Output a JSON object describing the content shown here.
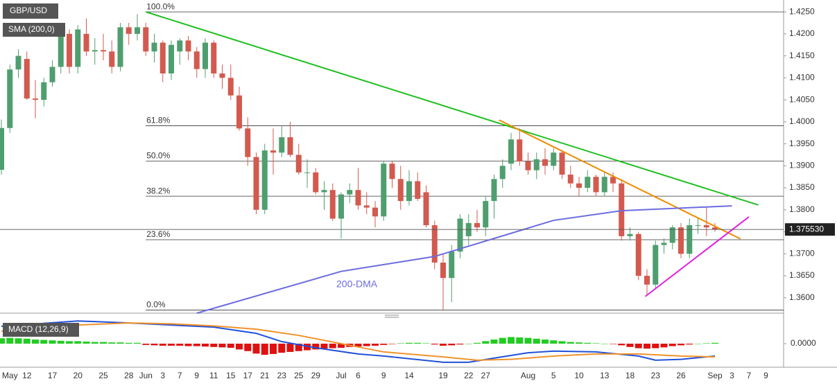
{
  "chart_data": {
    "type": "candlestick",
    "title": "GBP/USD",
    "indicator_label": "SMA (200,0)",
    "up_color": "#4f9e6f",
    "down_color": "#d25a4e",
    "ylim": [
      1.3565,
      1.4277
    ],
    "yticks": [
      {
        "value": 1.425,
        "label": "1.4250"
      },
      {
        "value": 1.42,
        "label": "1.4200"
      },
      {
        "value": 1.415,
        "label": "1.4150"
      },
      {
        "value": 1.41,
        "label": "1.4100"
      },
      {
        "value": 1.405,
        "label": "1.4050"
      },
      {
        "value": 1.4,
        "label": "1.4000"
      },
      {
        "value": 1.395,
        "label": "1.3950"
      },
      {
        "value": 1.39,
        "label": "1.3900"
      },
      {
        "value": 1.385,
        "label": "1.3850"
      },
      {
        "value": 1.38,
        "label": "1.3800"
      },
      {
        "value": 1.375,
        "label": "1.3750"
      },
      {
        "value": 1.37,
        "label": "1.3700"
      },
      {
        "value": 1.365,
        "label": "1.3650"
      },
      {
        "value": 1.36,
        "label": "1.3600"
      }
    ],
    "categories": [
      null,
      "May",
      null,
      "12",
      null,
      null,
      "17",
      null,
      null,
      "20",
      null,
      null,
      "25",
      null,
      null,
      "28",
      null,
      "Jun",
      null,
      "3",
      null,
      "7",
      null,
      "9",
      null,
      "11",
      null,
      "15",
      null,
      "17",
      null,
      "21",
      null,
      "23",
      null,
      "25",
      null,
      "29",
      null,
      null,
      "Jul",
      null,
      "6",
      null,
      null,
      "9",
      null,
      null,
      "14",
      null,
      null,
      null,
      "19",
      null,
      null,
      "22",
      null,
      "27",
      null,
      null,
      null,
      null,
      "Aug",
      null,
      null,
      "5",
      null,
      null,
      "10",
      null,
      null,
      "13",
      null,
      null,
      "18",
      null,
      null,
      "23",
      null,
      null,
      "26",
      null,
      null,
      null,
      "Sep",
      null,
      "3",
      null,
      "7",
      null,
      "9"
    ],
    "ohlc": [
      [
        1.3891,
        1.4005,
        1.388,
        1.3986
      ],
      [
        1.3986,
        1.413,
        1.3975,
        1.4119
      ],
      [
        1.4119,
        1.4165,
        1.41,
        1.415
      ],
      [
        1.4143,
        1.416,
        1.405,
        1.4053
      ],
      [
        1.4053,
        1.4095,
        1.4008,
        1.405
      ],
      [
        1.405,
        1.41,
        1.4035,
        1.409
      ],
      [
        1.409,
        1.414,
        1.408,
        1.4125
      ],
      [
        1.4125,
        1.4215,
        1.411,
        1.42
      ],
      [
        1.42,
        1.421,
        1.411,
        1.4125
      ],
      [
        1.4125,
        1.422,
        1.411,
        1.421
      ],
      [
        1.42,
        1.4235,
        1.415,
        1.416
      ],
      [
        1.416,
        1.419,
        1.413,
        1.4163
      ],
      [
        1.4163,
        1.42,
        1.414,
        1.416
      ],
      [
        1.416,
        1.4185,
        1.411,
        1.4125
      ],
      [
        1.4125,
        1.4225,
        1.4115,
        1.4215
      ],
      [
        1.4215,
        1.4225,
        1.4175,
        1.42
      ],
      [
        1.42,
        1.4245,
        1.4185,
        1.4215
      ],
      [
        1.4215,
        1.4225,
        1.415,
        1.416
      ],
      [
        1.416,
        1.42,
        1.4135,
        1.418
      ],
      [
        1.418,
        1.4185,
        1.409,
        1.411
      ],
      [
        1.411,
        1.4185,
        1.4095,
        1.4175
      ],
      [
        1.416,
        1.419,
        1.413,
        1.4185
      ],
      [
        1.4185,
        1.4195,
        1.414,
        1.416
      ],
      [
        1.416,
        1.417,
        1.41,
        1.412
      ],
      [
        1.412,
        1.419,
        1.41,
        1.418
      ],
      [
        1.418,
        1.4185,
        1.41,
        1.411
      ],
      [
        1.411,
        1.413,
        1.4075,
        1.41
      ],
      [
        1.41,
        1.413,
        1.405,
        1.406
      ],
      [
        1.406,
        1.408,
        1.398,
        1.3985
      ],
      [
        1.3985,
        1.401,
        1.39,
        1.392
      ],
      [
        1.392,
        1.393,
        1.379,
        1.38
      ],
      [
        1.38,
        1.395,
        1.379,
        1.3935
      ],
      [
        1.3935,
        1.3985,
        1.388,
        1.393
      ],
      [
        1.393,
        1.399,
        1.392,
        1.3965
      ],
      [
        1.3965,
        1.4,
        1.392,
        1.3925
      ],
      [
        1.3925,
        1.395,
        1.388,
        1.3885
      ],
      [
        1.3885,
        1.3915,
        1.385,
        1.3885
      ],
      [
        1.3885,
        1.3895,
        1.3835,
        1.384
      ],
      [
        1.384,
        1.3865,
        1.38,
        1.3845
      ],
      [
        1.3845,
        1.386,
        1.3775,
        1.378
      ],
      [
        1.378,
        1.384,
        1.3735,
        1.3835
      ],
      [
        1.3835,
        1.386,
        1.3815,
        1.3845
      ],
      [
        1.3845,
        1.3895,
        1.38,
        1.381
      ],
      [
        1.381,
        1.384,
        1.379,
        1.3805
      ],
      [
        1.3805,
        1.382,
        1.376,
        1.3785
      ],
      [
        1.3785,
        1.391,
        1.3775,
        1.3905
      ],
      [
        1.3905,
        1.391,
        1.385,
        1.387
      ],
      [
        1.387,
        1.39,
        1.38,
        1.382
      ],
      [
        1.382,
        1.389,
        1.381,
        1.3865
      ],
      [
        1.3865,
        1.3885,
        1.382,
        1.3825
      ],
      [
        1.384,
        1.3855,
        1.376,
        1.3765
      ],
      [
        1.3765,
        1.3775,
        1.3665,
        1.368
      ],
      [
        1.368,
        1.37,
        1.3572,
        1.3645
      ],
      [
        1.3645,
        1.372,
        1.359,
        1.3705
      ],
      [
        1.3705,
        1.379,
        1.369,
        1.378
      ],
      [
        1.374,
        1.379,
        1.372,
        1.377
      ],
      [
        1.377,
        1.38,
        1.375,
        1.376
      ],
      [
        1.376,
        1.383,
        1.374,
        1.382
      ],
      [
        1.382,
        1.388,
        1.378,
        1.387
      ],
      [
        1.387,
        1.3915,
        1.385,
        1.39
      ],
      [
        1.3905,
        1.3975,
        1.389,
        1.396
      ],
      [
        1.396,
        1.3985,
        1.39,
        1.391
      ],
      [
        1.391,
        1.393,
        1.388,
        1.389
      ],
      [
        1.389,
        1.393,
        1.387,
        1.3915
      ],
      [
        1.3915,
        1.394,
        1.388,
        1.39
      ],
      [
        1.39,
        1.394,
        1.389,
        1.393
      ],
      [
        1.393,
        1.3935,
        1.387,
        1.388
      ],
      [
        1.388,
        1.39,
        1.385,
        1.386
      ],
      [
        1.386,
        1.3875,
        1.383,
        1.385
      ],
      [
        1.385,
        1.389,
        1.384,
        1.3875
      ],
      [
        1.3875,
        1.388,
        1.383,
        1.384
      ],
      [
        1.384,
        1.3885,
        1.383,
        1.3875
      ],
      [
        1.3875,
        1.3885,
        1.384,
        1.386
      ],
      [
        1.386,
        1.387,
        1.373,
        1.374
      ],
      [
        1.374,
        1.376,
        1.373,
        1.3745
      ],
      [
        1.3745,
        1.375,
        1.364,
        1.365
      ],
      [
        1.365,
        1.3665,
        1.3605,
        1.363
      ],
      [
        1.363,
        1.373,
        1.362,
        1.372
      ],
      [
        1.372,
        1.3735,
        1.37,
        1.3725
      ],
      [
        1.3725,
        1.3765,
        1.371,
        1.376
      ],
      [
        1.376,
        1.377,
        1.369,
        1.37
      ],
      [
        1.37,
        1.378,
        1.369,
        1.3765
      ],
      [
        1.3765,
        1.378,
        1.3745,
        1.3765
      ],
      [
        1.3765,
        1.3805,
        1.374,
        1.376
      ],
      [
        1.376,
        1.377,
        1.375,
        1.3755
      ],
      null,
      null,
      null,
      null,
      null,
      null
    ],
    "fib_levels": [
      {
        "label": "100.0%",
        "value": 1.425
      },
      {
        "label": "61.8%",
        "value": 1.3991
      },
      {
        "label": "50.0%",
        "value": 1.3911
      },
      {
        "label": "38.2%",
        "value": 1.3831
      },
      {
        "label": "23.6%",
        "value": 1.3732
      },
      {
        "label": "0.0%",
        "value": 1.3572
      }
    ],
    "fib_start": 17,
    "lines": [
      {
        "color": "#1fbf1f",
        "x": [
          17,
          89.1
        ],
        "values": [
          1.425,
          1.3811
        ]
      },
      {
        "color": "#f08a00",
        "x": [
          58.6,
          87
        ],
        "values": [
          1.4004,
          1.3734
        ]
      },
      {
        "color": "#e020e0",
        "x": [
          75.8,
          88
        ],
        "values": [
          1.3603,
          1.3784
        ]
      },
      {
        "name": "200-DMA",
        "color": "#6b6be0",
        "x": [
          23,
          40,
          51,
          57,
          65,
          73,
          86
        ],
        "values": [
          1.3565,
          1.366,
          1.3694,
          1.3729,
          1.3776,
          1.3798,
          1.3809
        ]
      }
    ],
    "last_price": {
      "value": 1.37553,
      "label": "1.375530"
    },
    "macd": {
      "title": "MACD (12,26,9)",
      "ylim": [
        -0.0057,
        0.0057
      ],
      "yticks": [
        {
          "value": 0,
          "label": "0.0000"
        }
      ],
      "up_color": "#22cc22",
      "down_color": "#e01010",
      "histogram": [
        0.0013,
        0.0014,
        0.0013,
        0.0012,
        0.001,
        0.0009,
        0.0008,
        0.0007,
        0.0006,
        0.0006,
        0.0005,
        0.0004,
        0.0004,
        0.0003,
        0.0003,
        0.0002,
        0.0002,
        -0.0003,
        -0.0004,
        -0.0005,
        -0.0005,
        -0.0005,
        -0.0006,
        -0.0006,
        -0.0007,
        -0.0008,
        -0.0009,
        -0.001,
        -0.0014,
        -0.0018,
        -0.0024,
        -0.0027,
        -0.0025,
        -0.0022,
        -0.002,
        -0.0018,
        -0.0016,
        -0.0014,
        -0.0012,
        -0.0011,
        -0.001,
        -0.0008,
        -0.0007,
        -0.0006,
        -0.0005,
        -0.0003,
        -0.0001,
        0.0001,
        0.0002,
        0.0002,
        0.0001,
        -0.0002,
        -0.0005,
        -0.0004,
        -0.0002,
        0,
        0.0002,
        0.0006,
        0.001,
        0.0014,
        0.0016,
        0.0015,
        0.0014,
        0.0012,
        0.001,
        0.0008,
        0.0006,
        0.0004,
        0.0003,
        0.0002,
        0.0001,
        0,
        -0.0001,
        -0.0004,
        -0.0008,
        -0.0011,
        -0.0012,
        -0.0011,
        -0.0009,
        -0.0006,
        -0.0004,
        -0.0002,
        0,
        0.0001,
        0.0002,
        null,
        null,
        null,
        null,
        null,
        null
      ],
      "lines": [
        {
          "color": "#2050d8",
          "x": [
            0,
            9,
            15,
            20,
            25,
            30,
            33,
            37,
            42,
            45,
            52,
            55,
            58,
            62,
            65,
            70,
            75,
            77,
            80,
            84
          ],
          "values": [
            0.0042,
            0.0055,
            0.005,
            0.0045,
            0.004,
            0.0025,
            0.0005,
            -0.001,
            -0.0025,
            -0.003,
            -0.0045,
            -0.0045,
            -0.0035,
            -0.0022,
            -0.0018,
            -0.002,
            -0.003,
            -0.004,
            -0.0038,
            -0.003
          ]
        },
        {
          "color": "#f0922a",
          "x": [
            0,
            9,
            15,
            20,
            25,
            30,
            35,
            40,
            45,
            52,
            56,
            60,
            65,
            70,
            75,
            80,
            84
          ],
          "values": [
            0.003,
            0.0045,
            0.005,
            0.0048,
            0.0043,
            0.0035,
            0.002,
            0,
            -0.002,
            -0.0032,
            -0.004,
            -0.0038,
            -0.003,
            -0.0025,
            -0.0025,
            -0.003,
            -0.0032
          ]
        }
      ]
    }
  }
}
